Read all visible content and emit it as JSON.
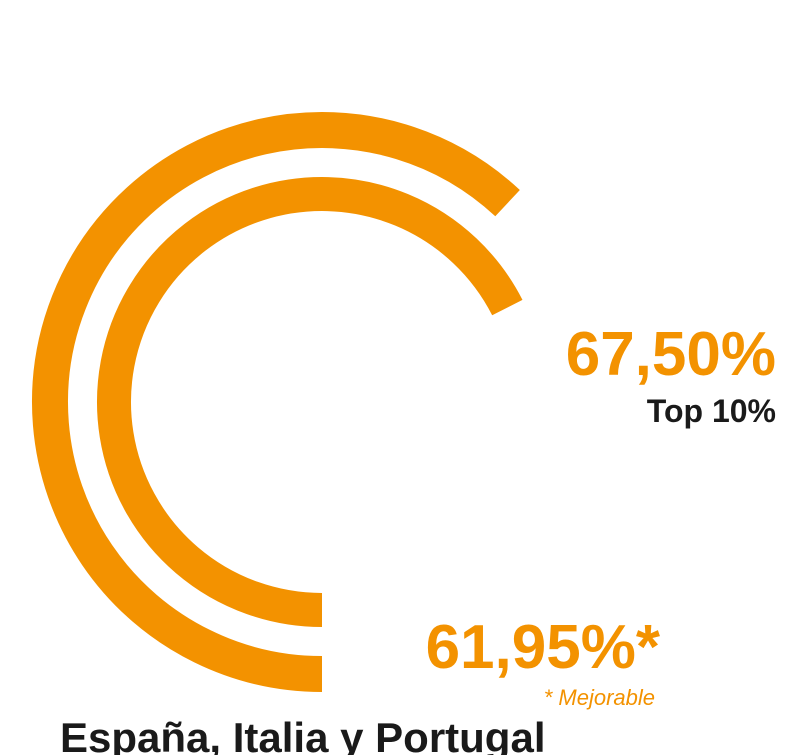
{
  "chart_data": {
    "type": "radial_bar",
    "title": "España, Italia y Portugal",
    "categories": [
      "* Mejorable",
      "Top 10%"
    ],
    "values": [
      61.95,
      67.5
    ],
    "value_labels": [
      "61,95%*",
      "67,50%"
    ],
    "ylim": [
      0,
      100
    ],
    "color": "#f39200"
  }
}
